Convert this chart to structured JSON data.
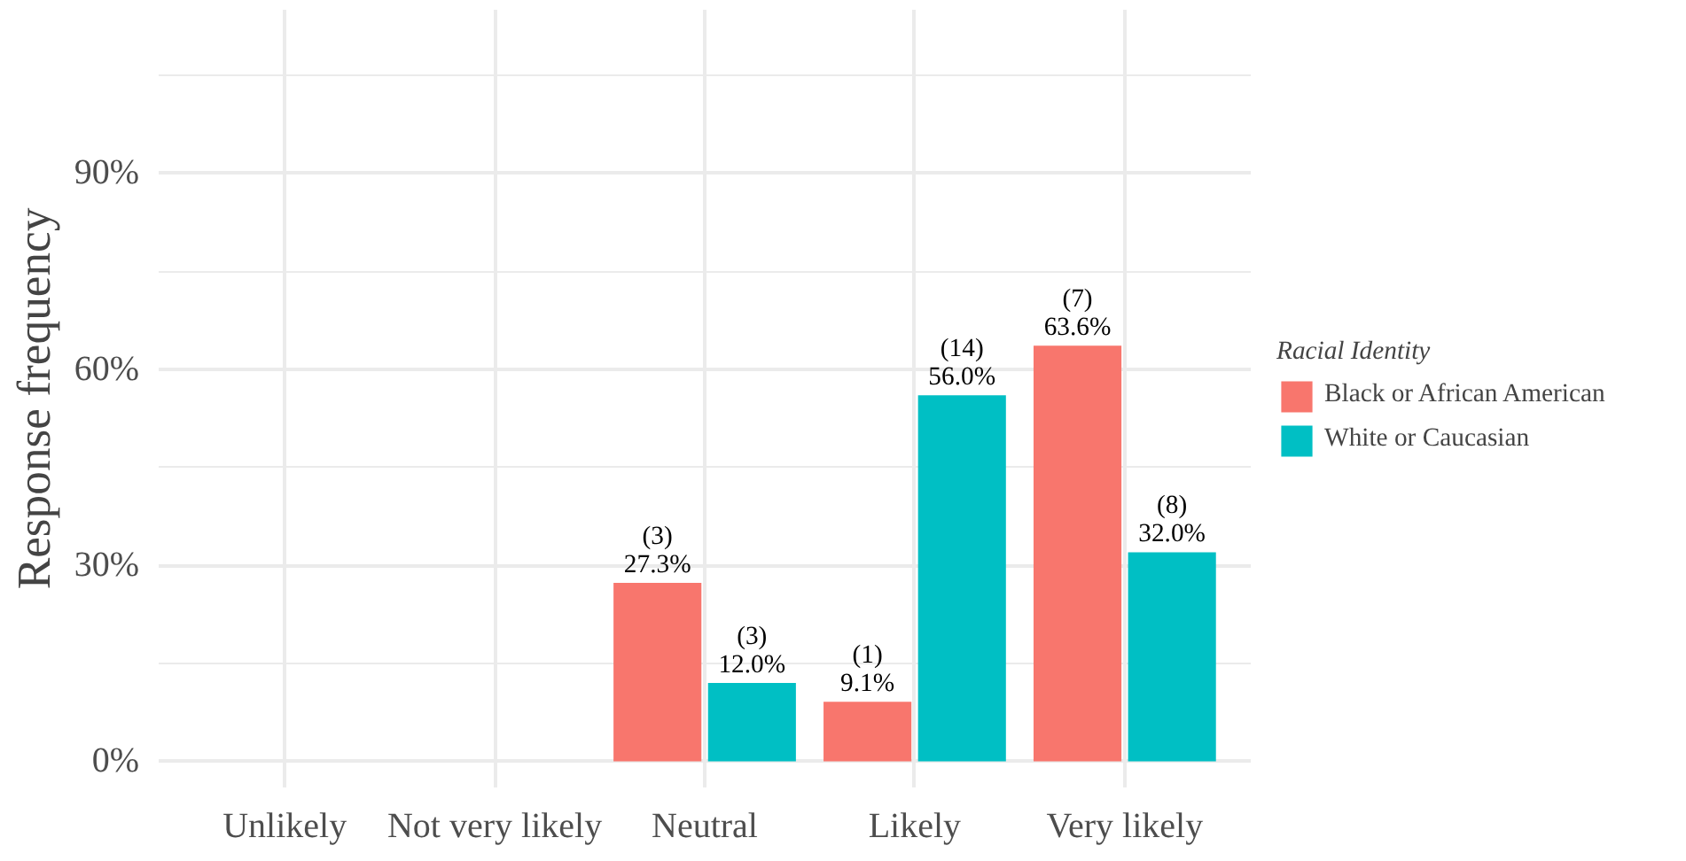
{
  "chart_data": {
    "type": "bar",
    "ylabel": "Response frequency",
    "legend_title": "Racial Identity",
    "categories": [
      "Unlikely",
      "Not very likely",
      "Neutral",
      "Likely",
      "Very likely"
    ],
    "series": [
      {
        "name": "Black or African American",
        "color": "#f8766d",
        "values": [
          null,
          null,
          27.3,
          9.1,
          63.6
        ],
        "value_labels": [
          null,
          null,
          "(3)\n27.3%",
          "(1)\n9.1%",
          "(7)\n63.6%"
        ]
      },
      {
        "name": "White or Caucasian",
        "color": "#00bfc4",
        "values": [
          null,
          null,
          12.0,
          56.0,
          32.0
        ],
        "value_labels": [
          null,
          null,
          "(3)\n12.0%",
          "(14)\n56.0%",
          "(8)\n32.0%"
        ]
      }
    ],
    "ylim": [
      -4,
      115
    ],
    "yticks": [
      {
        "value": 0,
        "label": "0%"
      },
      {
        "value": 30,
        "label": "30%"
      },
      {
        "value": 60,
        "label": "60%"
      },
      {
        "value": 90,
        "label": "90%"
      }
    ],
    "grid": true,
    "legend": "right"
  }
}
